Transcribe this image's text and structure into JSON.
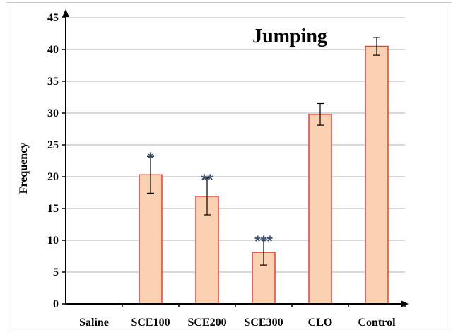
{
  "chart_data": {
    "type": "bar",
    "title": "Jumping",
    "xlabel": "",
    "ylabel": "Frequency",
    "ylim": [
      0,
      45
    ],
    "yticks": [
      0,
      5,
      10,
      15,
      20,
      25,
      30,
      35,
      40,
      45
    ],
    "categories": [
      "Saline",
      "SCE100",
      "SCE200",
      "SCE300",
      "CLO",
      "Control"
    ],
    "values": [
      0,
      20.3,
      16.9,
      8.1,
      29.8,
      40.5
    ],
    "errors": [
      0,
      2.9,
      2.9,
      2.0,
      1.7,
      1.4
    ],
    "significance": [
      "",
      "*",
      "**",
      "***",
      "",
      ""
    ],
    "grid": true,
    "colors": {
      "bar_fill": "#fbd1b1",
      "bar_edge": "#e8413c",
      "grid": "#b3b3b3",
      "stars": "#3d4f6e"
    }
  }
}
